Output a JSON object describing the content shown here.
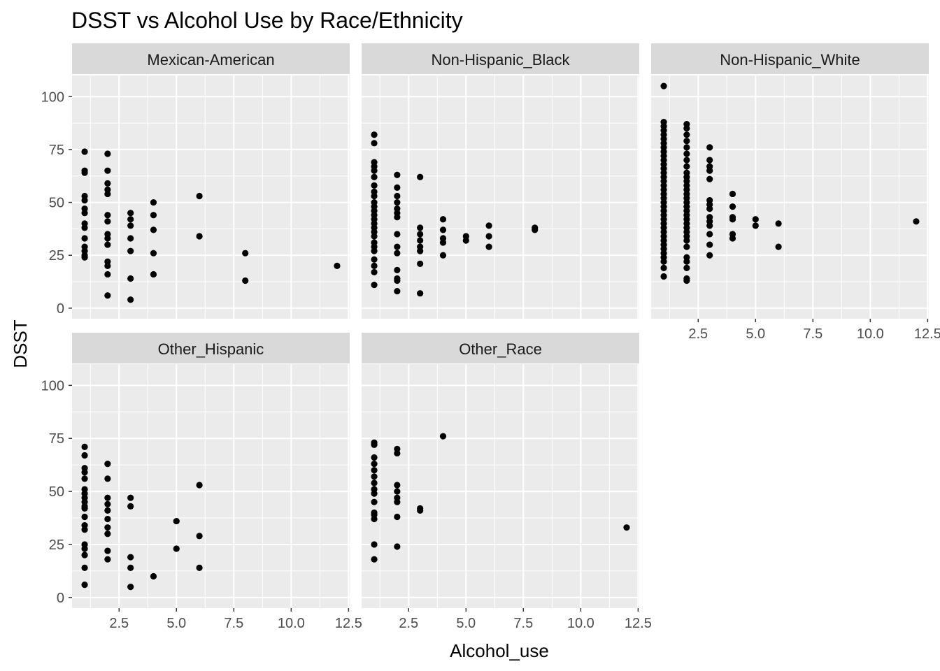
{
  "chart_data": {
    "type": "scatter",
    "title": "DSST vs Alcohol Use by Race/Ethnicity",
    "xlabel": "Alcohol_use",
    "ylabel": "DSST",
    "xlim": [
      0.45,
      12.55
    ],
    "ylim": [
      -5,
      110
    ],
    "x_ticks": [
      2.5,
      5.0,
      7.5,
      10.0,
      12.5
    ],
    "x_tick_labels": [
      "2.5",
      "5.0",
      "7.5",
      "10.0",
      "12.5"
    ],
    "y_ticks": [
      0,
      25,
      50,
      75,
      100
    ],
    "y_tick_labels": [
      "0",
      "25",
      "50",
      "75",
      "100"
    ],
    "grid": true,
    "point_color": "#000000",
    "panel_background": "#ebebeb",
    "strip_background": "#d9d9d9",
    "grid_color": "#ffffff",
    "panels": [
      {
        "name": "Mexican-American",
        "points": [
          [
            1,
            74
          ],
          [
            1,
            65
          ],
          [
            1,
            64
          ],
          [
            1,
            53
          ],
          [
            1,
            51
          ],
          [
            1,
            47
          ],
          [
            1,
            45
          ],
          [
            1,
            40
          ],
          [
            1,
            38
          ],
          [
            1,
            33
          ],
          [
            1,
            29
          ],
          [
            1,
            27
          ],
          [
            1,
            25
          ],
          [
            1,
            24
          ],
          [
            2,
            73
          ],
          [
            2,
            65
          ],
          [
            2,
            59
          ],
          [
            2,
            56
          ],
          [
            2,
            54
          ],
          [
            2,
            44
          ],
          [
            2,
            41
          ],
          [
            2,
            35
          ],
          [
            2,
            33
          ],
          [
            2,
            30
          ],
          [
            2,
            22
          ],
          [
            2,
            20
          ],
          [
            2,
            16
          ],
          [
            2,
            6
          ],
          [
            3,
            45
          ],
          [
            3,
            42
          ],
          [
            3,
            39
          ],
          [
            3,
            33
          ],
          [
            3,
            27
          ],
          [
            3,
            14
          ],
          [
            3,
            4
          ],
          [
            4,
            50
          ],
          [
            4,
            44
          ],
          [
            4,
            37
          ],
          [
            4,
            26
          ],
          [
            4,
            16
          ],
          [
            6,
            53
          ],
          [
            6,
            34
          ],
          [
            8,
            26
          ],
          [
            8,
            13
          ],
          [
            12,
            20
          ]
        ]
      },
      {
        "name": "Non-Hispanic_Black",
        "points": [
          [
            1,
            82
          ],
          [
            1,
            78
          ],
          [
            1,
            69
          ],
          [
            1,
            67
          ],
          [
            1,
            65
          ],
          [
            1,
            62
          ],
          [
            1,
            58
          ],
          [
            1,
            55
          ],
          [
            1,
            53
          ],
          [
            1,
            50
          ],
          [
            1,
            48
          ],
          [
            1,
            46
          ],
          [
            1,
            44
          ],
          [
            1,
            42
          ],
          [
            1,
            40
          ],
          [
            1,
            38
          ],
          [
            1,
            36
          ],
          [
            1,
            34
          ],
          [
            1,
            31
          ],
          [
            1,
            29
          ],
          [
            1,
            27
          ],
          [
            1,
            23
          ],
          [
            1,
            20
          ],
          [
            1,
            17
          ],
          [
            1,
            11
          ],
          [
            2,
            63
          ],
          [
            2,
            57
          ],
          [
            2,
            53
          ],
          [
            2,
            50
          ],
          [
            2,
            47
          ],
          [
            2,
            45
          ],
          [
            2,
            43
          ],
          [
            2,
            35
          ],
          [
            2,
            29
          ],
          [
            2,
            26
          ],
          [
            2,
            18
          ],
          [
            2,
            14
          ],
          [
            2,
            13
          ],
          [
            2,
            8
          ],
          [
            3,
            62
          ],
          [
            3,
            38
          ],
          [
            3,
            35
          ],
          [
            3,
            32
          ],
          [
            3,
            29
          ],
          [
            3,
            27
          ],
          [
            3,
            21
          ],
          [
            3,
            7
          ],
          [
            4,
            42
          ],
          [
            4,
            37
          ],
          [
            4,
            33
          ],
          [
            4,
            31
          ],
          [
            4,
            25
          ],
          [
            5,
            34
          ],
          [
            5,
            32
          ],
          [
            6,
            39
          ],
          [
            6,
            34
          ],
          [
            6,
            29
          ],
          [
            8,
            38
          ],
          [
            8,
            37
          ]
        ]
      },
      {
        "name": "Non-Hispanic_White",
        "points": [
          [
            1,
            105
          ],
          [
            1,
            88
          ],
          [
            1,
            86
          ],
          [
            1,
            84
          ],
          [
            1,
            82
          ],
          [
            1,
            80
          ],
          [
            1,
            78
          ],
          [
            1,
            76
          ],
          [
            1,
            74
          ],
          [
            1,
            72
          ],
          [
            1,
            70
          ],
          [
            1,
            68
          ],
          [
            1,
            66
          ],
          [
            1,
            64
          ],
          [
            1,
            62
          ],
          [
            1,
            60
          ],
          [
            1,
            58
          ],
          [
            1,
            56
          ],
          [
            1,
            54
          ],
          [
            1,
            52
          ],
          [
            1,
            50
          ],
          [
            1,
            48
          ],
          [
            1,
            46
          ],
          [
            1,
            44
          ],
          [
            1,
            42
          ],
          [
            1,
            40
          ],
          [
            1,
            38
          ],
          [
            1,
            36
          ],
          [
            1,
            34
          ],
          [
            1,
            32
          ],
          [
            1,
            30
          ],
          [
            1,
            28
          ],
          [
            1,
            26
          ],
          [
            1,
            24
          ],
          [
            1,
            22
          ],
          [
            1,
            19
          ],
          [
            1,
            15
          ],
          [
            2,
            87
          ],
          [
            2,
            85
          ],
          [
            2,
            82
          ],
          [
            2,
            79
          ],
          [
            2,
            76
          ],
          [
            2,
            73
          ],
          [
            2,
            70
          ],
          [
            2,
            67
          ],
          [
            2,
            64
          ],
          [
            2,
            62
          ],
          [
            2,
            60
          ],
          [
            2,
            58
          ],
          [
            2,
            56
          ],
          [
            2,
            54
          ],
          [
            2,
            52
          ],
          [
            2,
            50
          ],
          [
            2,
            48
          ],
          [
            2,
            46
          ],
          [
            2,
            44
          ],
          [
            2,
            42
          ],
          [
            2,
            40
          ],
          [
            2,
            38
          ],
          [
            2,
            36
          ],
          [
            2,
            34
          ],
          [
            2,
            32
          ],
          [
            2,
            29
          ],
          [
            2,
            24
          ],
          [
            2,
            22
          ],
          [
            2,
            19
          ],
          [
            2,
            14
          ],
          [
            2,
            13
          ],
          [
            3,
            76
          ],
          [
            3,
            70
          ],
          [
            3,
            67
          ],
          [
            3,
            65
          ],
          [
            3,
            61
          ],
          [
            3,
            51
          ],
          [
            3,
            49
          ],
          [
            3,
            47
          ],
          [
            3,
            43
          ],
          [
            3,
            41
          ],
          [
            3,
            39
          ],
          [
            3,
            35
          ],
          [
            3,
            30
          ],
          [
            3,
            25
          ],
          [
            4,
            54
          ],
          [
            4,
            48
          ],
          [
            4,
            43
          ],
          [
            4,
            42
          ],
          [
            4,
            35
          ],
          [
            4,
            33
          ],
          [
            5,
            42
          ],
          [
            5,
            39
          ],
          [
            6,
            40
          ],
          [
            6,
            29
          ],
          [
            12,
            41
          ]
        ]
      },
      {
        "name": "Other_Hispanic",
        "points": [
          [
            1,
            71
          ],
          [
            1,
            67
          ],
          [
            1,
            61
          ],
          [
            1,
            59
          ],
          [
            1,
            56
          ],
          [
            1,
            51
          ],
          [
            1,
            49
          ],
          [
            1,
            47
          ],
          [
            1,
            45
          ],
          [
            1,
            43
          ],
          [
            1,
            42
          ],
          [
            1,
            38
          ],
          [
            1,
            34
          ],
          [
            1,
            32
          ],
          [
            1,
            25
          ],
          [
            1,
            23
          ],
          [
            1,
            20
          ],
          [
            1,
            14
          ],
          [
            1,
            6
          ],
          [
            2,
            63
          ],
          [
            2,
            56
          ],
          [
            2,
            47
          ],
          [
            2,
            44
          ],
          [
            2,
            41
          ],
          [
            2,
            37
          ],
          [
            2,
            33
          ],
          [
            2,
            30
          ],
          [
            2,
            22
          ],
          [
            2,
            18
          ],
          [
            3,
            47
          ],
          [
            3,
            43
          ],
          [
            3,
            19
          ],
          [
            3,
            14
          ],
          [
            3,
            5
          ],
          [
            4,
            10
          ],
          [
            5,
            36
          ],
          [
            5,
            23
          ],
          [
            6,
            53
          ],
          [
            6,
            29
          ],
          [
            6,
            14
          ]
        ]
      },
      {
        "name": "Other_Race",
        "points": [
          [
            1,
            73
          ],
          [
            1,
            72
          ],
          [
            1,
            66
          ],
          [
            1,
            63
          ],
          [
            1,
            60
          ],
          [
            1,
            57
          ],
          [
            1,
            54
          ],
          [
            1,
            51
          ],
          [
            1,
            49
          ],
          [
            1,
            45
          ],
          [
            1,
            40
          ],
          [
            1,
            39
          ],
          [
            1,
            37
          ],
          [
            1,
            25
          ],
          [
            1,
            18
          ],
          [
            2,
            70
          ],
          [
            2,
            68
          ],
          [
            2,
            53
          ],
          [
            2,
            50
          ],
          [
            2,
            47
          ],
          [
            2,
            45
          ],
          [
            2,
            38
          ],
          [
            2,
            24
          ],
          [
            3,
            42
          ],
          [
            3,
            41
          ],
          [
            4,
            76
          ],
          [
            12,
            33
          ]
        ]
      }
    ]
  }
}
